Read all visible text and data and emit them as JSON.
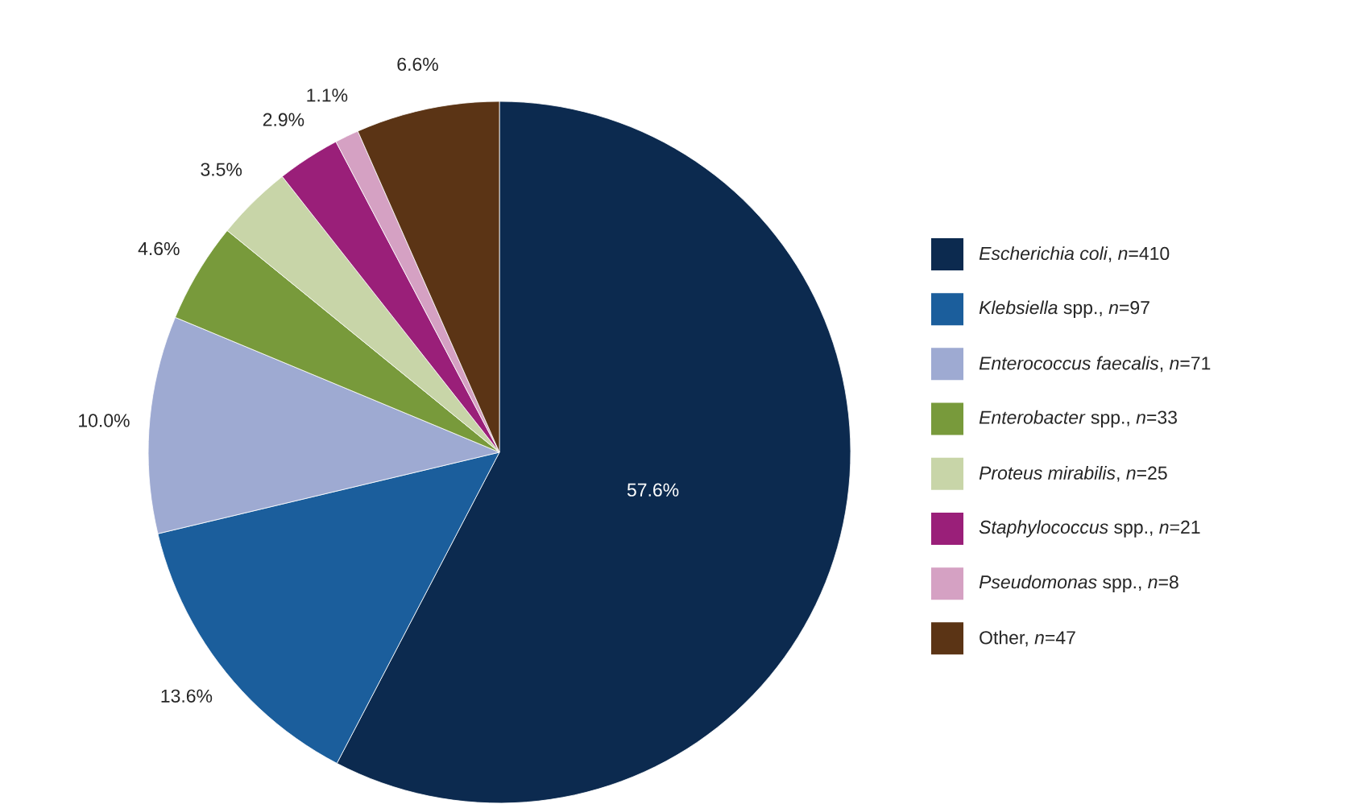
{
  "chart_data": {
    "type": "pie",
    "categories": [
      "*Escherichia coli*, *n*=410",
      "*Klebsiella* spp., *n*=97",
      "*Enterococcus faecalis*, *n*=71",
      "*Enterobacter* spp., *n*=33",
      "*Proteus mirabilis*, *n*=25",
      "*Staphylococcus* spp., *n*=21",
      "*Pseudomonas* spp., *n*=8",
      "Other, *n*=47"
    ],
    "values": [
      57.6,
      13.6,
      10.0,
      4.6,
      3.5,
      2.9,
      1.1,
      6.6
    ],
    "value_labels": [
      "57.6%",
      "13.6%",
      "10.0%",
      "4.6%",
      "3.5%",
      "2.9%",
      "1.1%",
      "6.6%"
    ],
    "colors": [
      "#0c2a4f",
      "#1b5e9c",
      "#9eaad2",
      "#789a3b",
      "#c8d5a8",
      "#9a1f79",
      "#d5a1c3",
      "#5b3415"
    ],
    "legend": "right"
  }
}
